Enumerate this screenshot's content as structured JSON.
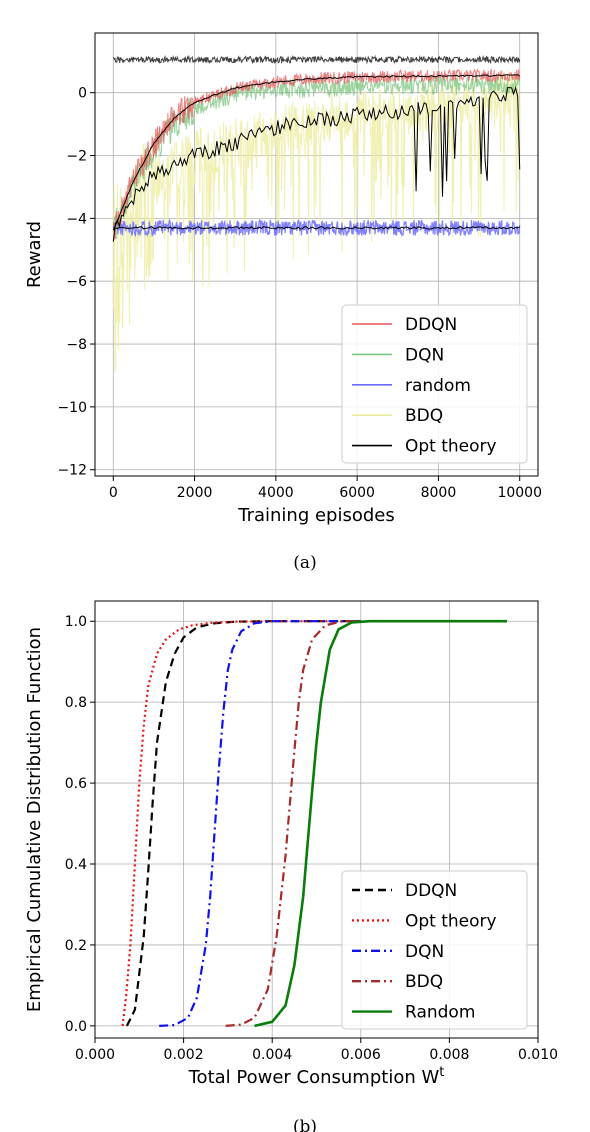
{
  "chart_data": [
    {
      "type": "line",
      "panel_label": "(a)",
      "title": "",
      "xlabel": "Training episodes",
      "ylabel": "Reward",
      "xlim": [
        -450,
        10450
      ],
      "ylim": [
        -12.2,
        1.9
      ],
      "xticks": [
        0,
        2000,
        4000,
        6000,
        8000,
        10000
      ],
      "yticks": [
        0,
        -2,
        -4,
        -6,
        -8,
        -10,
        -12
      ],
      "grid": true,
      "legend": {
        "position": "lower-right",
        "entries": [
          {
            "label": "DDQN",
            "color": "#e8575a"
          },
          {
            "label": "DQN",
            "color": "#7cc47f"
          },
          {
            "label": "random",
            "color": "#6b6bff"
          },
          {
            "label": "BDQ",
            "color": "#ecec9e"
          },
          {
            "label": "Opt theory",
            "color": "#000000"
          }
        ]
      },
      "series": [
        {
          "name": "DDQN",
          "color": "#e8575a",
          "x": [
            0,
            500,
            1000,
            1500,
            2000,
            3000,
            4000,
            5000,
            6000,
            7000,
            8000,
            9000,
            10000
          ],
          "y": [
            -4.4,
            -2.8,
            -1.6,
            -0.8,
            -0.3,
            0.15,
            0.35,
            0.45,
            0.5,
            0.52,
            0.53,
            0.54,
            0.55
          ]
        },
        {
          "name": "DQN",
          "color": "#7cc47f",
          "x": [
            0,
            500,
            1000,
            1500,
            2000,
            3000,
            4000,
            5000,
            6000,
            7000,
            8000,
            9000,
            10000
          ],
          "y": [
            -4.4,
            -2.9,
            -1.8,
            -1.0,
            -0.5,
            -0.05,
            0.1,
            0.15,
            0.2,
            0.22,
            0.23,
            0.24,
            0.25
          ]
        },
        {
          "name": "random",
          "color": "#6b6bff",
          "x": [
            0,
            2000,
            4000,
            6000,
            8000,
            10000
          ],
          "y": [
            -4.3,
            -4.3,
            -4.3,
            -4.3,
            -4.3,
            -4.3
          ]
        },
        {
          "name": "BDQ",
          "color": "#ecec9e",
          "x": [
            0,
            500,
            1000,
            2000,
            3000,
            4000,
            5000,
            6000,
            7000,
            8000,
            9000,
            10000
          ],
          "y": [
            -4.5,
            -3.3,
            -2.6,
            -2.0,
            -1.6,
            -1.1,
            -0.9,
            -0.7,
            -0.6,
            -0.4,
            -0.2,
            0.0
          ]
        },
        {
          "name": "Opt theory",
          "color": "#000000",
          "x": [
            0,
            2000,
            4000,
            6000,
            8000,
            10000
          ],
          "y": [
            1.05,
            1.05,
            1.05,
            1.05,
            1.05,
            1.05
          ]
        }
      ]
    },
    {
      "type": "line",
      "panel_label": "(b)",
      "title": "",
      "xlabel": "Total Power Consumption W",
      "xlabel_sup": "t",
      "ylabel": "Empirical Cumulative Distribution Function",
      "xlim": [
        0.0,
        0.01
      ],
      "ylim": [
        -0.03,
        1.05
      ],
      "xticks": [
        0.0,
        0.002,
        0.004,
        0.006,
        0.008,
        0.01
      ],
      "xticklabels": [
        "0.000",
        "0.002",
        "0.004",
        "0.006",
        "0.008",
        "0.010"
      ],
      "yticks": [
        0.0,
        0.2,
        0.4,
        0.6,
        0.8,
        1.0
      ],
      "yticklabels": [
        "0.0",
        "0.2",
        "0.4",
        "0.6",
        "0.8",
        "1.0"
      ],
      "grid": true,
      "legend": {
        "position": "lower-right",
        "entries": [
          {
            "label": "DDQN",
            "color": "#000000",
            "dash": "8,5"
          },
          {
            "label": "Opt theory",
            "color": "#ee1111",
            "dash": "2,3"
          },
          {
            "label": "DQN",
            "color": "#1111ee",
            "dash": "9,4,2,4"
          },
          {
            "label": "BDQ",
            "color": "#a52a2a",
            "dash": "9,4,2,4"
          },
          {
            "label": "Random",
            "color": "#0b7d0b",
            "dash": ""
          }
        ]
      },
      "series": [
        {
          "name": "DDQN",
          "color": "#000000",
          "dash": "8,5",
          "width": 2.2,
          "x": [
            0.00072,
            0.0009,
            0.0011,
            0.0012,
            0.0013,
            0.0014,
            0.0016,
            0.0018,
            0.002,
            0.0023,
            0.0027,
            0.0032,
            0.004,
            0.006
          ],
          "y": [
            0.0,
            0.04,
            0.22,
            0.38,
            0.55,
            0.7,
            0.85,
            0.92,
            0.96,
            0.985,
            0.995,
            0.999,
            1.0,
            1.0
          ]
        },
        {
          "name": "Opt theory",
          "color": "#ee1111",
          "dash": "2,3",
          "width": 2.2,
          "x": [
            0.00062,
            0.0007,
            0.0008,
            0.0009,
            0.001,
            0.0011,
            0.0012,
            0.0014,
            0.0016,
            0.0019,
            0.0022,
            0.0026,
            0.0032,
            0.0045,
            0.006
          ],
          "y": [
            0.0,
            0.07,
            0.2,
            0.4,
            0.6,
            0.74,
            0.84,
            0.92,
            0.955,
            0.98,
            0.99,
            0.996,
            0.999,
            1.0,
            1.0
          ]
        },
        {
          "name": "DQN",
          "color": "#1111ee",
          "dash": "9,4,2,4",
          "width": 2.2,
          "x": [
            0.00145,
            0.0018,
            0.0021,
            0.0023,
            0.0025,
            0.0026,
            0.0027,
            0.0028,
            0.0029,
            0.003,
            0.0031,
            0.0033,
            0.0036,
            0.004,
            0.006
          ],
          "y": [
            0.0,
            0.002,
            0.02,
            0.07,
            0.2,
            0.32,
            0.48,
            0.64,
            0.78,
            0.88,
            0.93,
            0.975,
            0.995,
            1.0,
            1.0
          ]
        },
        {
          "name": "BDQ",
          "color": "#a52a2a",
          "dash": "9,4,2,4",
          "width": 2.2,
          "x": [
            0.00295,
            0.0033,
            0.0036,
            0.0039,
            0.0041,
            0.0043,
            0.0044,
            0.0045,
            0.0046,
            0.0047,
            0.0049,
            0.0052,
            0.0056,
            0.006
          ],
          "y": [
            0.0,
            0.003,
            0.02,
            0.09,
            0.22,
            0.42,
            0.55,
            0.68,
            0.8,
            0.88,
            0.955,
            0.99,
            1.0,
            1.0
          ]
        },
        {
          "name": "Random",
          "color": "#0b7d0b",
          "dash": "",
          "width": 2.6,
          "x": [
            0.0036,
            0.004,
            0.0043,
            0.0045,
            0.0047,
            0.0048,
            0.0049,
            0.005,
            0.0051,
            0.0053,
            0.0055,
            0.0058,
            0.0062,
            0.0093
          ],
          "y": [
            0.0,
            0.01,
            0.05,
            0.15,
            0.32,
            0.45,
            0.58,
            0.7,
            0.8,
            0.93,
            0.98,
            0.997,
            1.0,
            1.0
          ]
        }
      ]
    }
  ]
}
